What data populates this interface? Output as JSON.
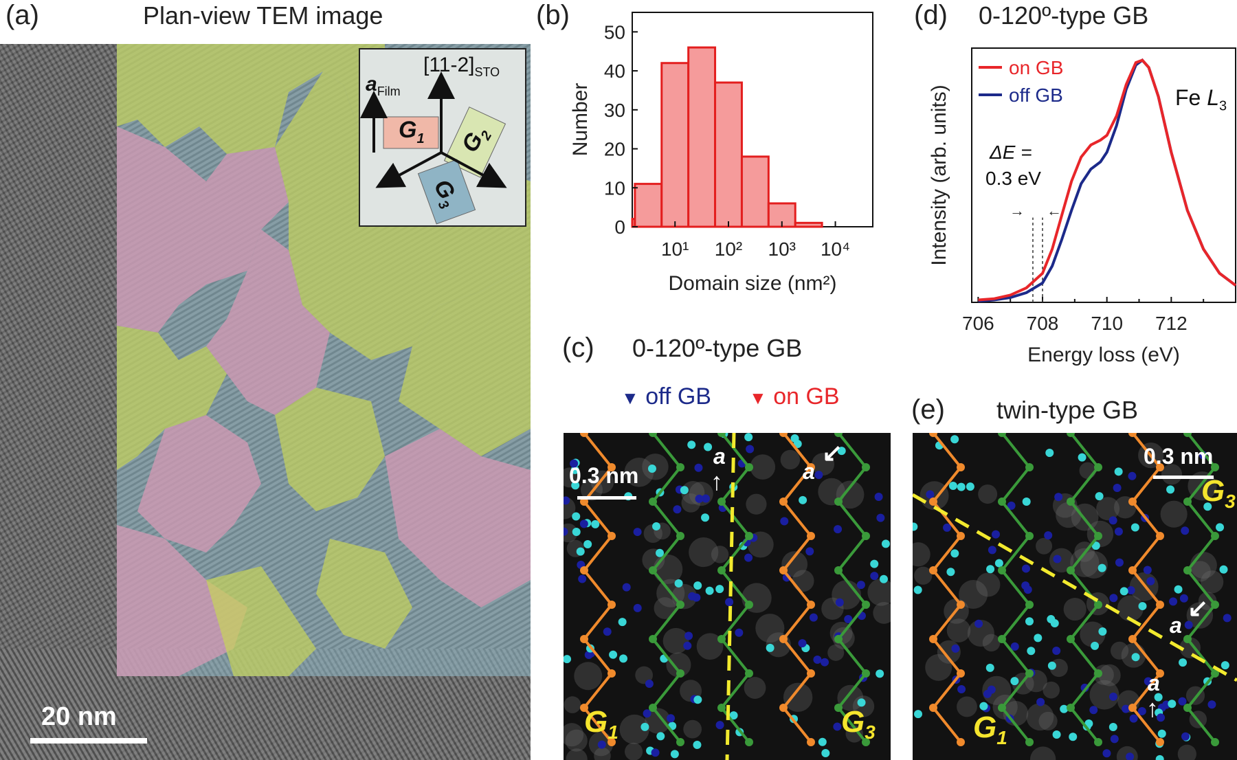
{
  "panel_a": {
    "label": "(a)",
    "title": "Plan-view TEM image",
    "scale_bar": "20 nm",
    "inset": {
      "direction_label": "[11-2]",
      "direction_sub": "STO",
      "axis_label": "a",
      "axis_sub": "Film",
      "g1": "G",
      "g1_sub": "1",
      "g2": "G",
      "g2_sub": "2",
      "g3": "G",
      "g3_sub": "3"
    }
  },
  "panel_b": {
    "label": "(b)",
    "colors": {
      "bar_fill": "#f59b9b",
      "bar_edge": "#e31e1e"
    }
  },
  "panel_c": {
    "label": "(c)",
    "title": "0-120º-type GB",
    "off_gb": "off GB",
    "on_gb": "on GB",
    "scale_bar": "0.3 nm",
    "a_label_1": "a",
    "a_label_2": "a",
    "g1": "G",
    "g1_sub": "1",
    "g3": "G",
    "g3_sub": "3"
  },
  "panel_d": {
    "label": "(d)",
    "title": "0-120º-type GB",
    "fe_label": "Fe ",
    "fe_L": "L",
    "fe_sub": "3",
    "delta_e_line1": "ΔE =",
    "delta_e_line2": "0.3 eV"
  },
  "panel_e": {
    "label": "(e)",
    "title": "twin-type GB",
    "scale_bar": "0.3 nm",
    "a_label_1": "a",
    "a_label_2": "a",
    "g1": "G",
    "g1_sub": "1",
    "g3": "G",
    "g3_sub": "3"
  },
  "chart_data": [
    {
      "type": "bar",
      "xlabel": "Domain size (nm²)",
      "ylabel": "Number",
      "x_scale": "log",
      "x_ticks": [
        "10¹",
        "10²",
        "10³",
        "10⁴"
      ],
      "y_ticks": [
        "0",
        "10",
        "20",
        "30",
        "40",
        "50"
      ],
      "ylim": [
        0,
        55
      ],
      "xlim_log10": [
        0.2,
        4.7
      ],
      "bin_edges_log10": [
        0.0,
        0.25,
        0.75,
        1.25,
        1.75,
        2.25,
        2.75,
        3.25,
        3.75,
        4.25,
        4.75
      ],
      "values": [
        2,
        11,
        42,
        46,
        37,
        18,
        6,
        1,
        0,
        0
      ]
    },
    {
      "type": "line",
      "xlabel": "Energy loss (eV)",
      "ylabel": "Intensity (arb. units)",
      "x_ticks": [
        "706",
        "708",
        "710",
        "712"
      ],
      "xlim": [
        705.8,
        714
      ],
      "ylim": [
        0,
        1.05
      ],
      "series": [
        {
          "name": "on GB",
          "color": "#e8262a",
          "x": [
            706.0,
            706.5,
            707.0,
            707.5,
            708.0,
            708.3,
            708.6,
            708.9,
            709.2,
            709.5,
            709.8,
            710.0,
            710.3,
            710.6,
            710.9,
            711.1,
            711.3,
            711.6,
            712.0,
            712.5,
            713.0,
            713.5,
            714.0
          ],
          "y": [
            0.01,
            0.015,
            0.03,
            0.06,
            0.12,
            0.22,
            0.36,
            0.5,
            0.6,
            0.65,
            0.67,
            0.69,
            0.77,
            0.9,
            0.99,
            1.0,
            0.97,
            0.85,
            0.62,
            0.38,
            0.22,
            0.12,
            0.07
          ]
        },
        {
          "name": "off GB",
          "color": "#1c2a8a",
          "x": [
            706.0,
            706.5,
            707.0,
            707.5,
            708.0,
            708.3,
            708.6,
            708.9,
            709.2,
            709.5,
            709.8,
            710.0,
            710.3,
            710.6,
            710.9,
            711.1,
            711.3,
            711.6,
            712.0,
            712.5,
            713.0,
            713.5,
            714.0
          ],
          "y": [
            0.005,
            0.01,
            0.02,
            0.04,
            0.08,
            0.15,
            0.26,
            0.38,
            0.49,
            0.55,
            0.58,
            0.62,
            0.73,
            0.88,
            0.98,
            1.0,
            0.97,
            0.85,
            0.62,
            0.38,
            0.22,
            0.12,
            0.07
          ]
        }
      ]
    }
  ]
}
